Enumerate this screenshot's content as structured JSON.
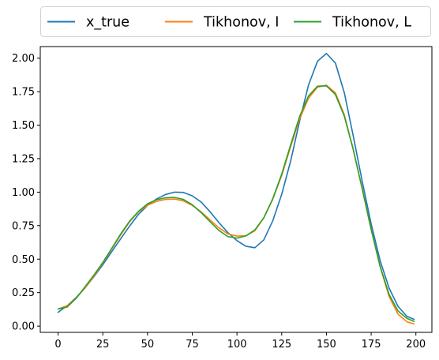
{
  "chart_data": {
    "type": "line",
    "title": "",
    "xlabel": "",
    "ylabel": "",
    "xlim": [
      -9.95,
      208.95
    ],
    "ylim": [
      -0.0465,
      2.0865
    ],
    "xticks": [
      0,
      25,
      50,
      75,
      100,
      125,
      150,
      175,
      200
    ],
    "xtick_labels": [
      "0",
      "25",
      "50",
      "75",
      "100",
      "125",
      "150",
      "175",
      "200"
    ],
    "yticks": [
      0.0,
      0.25,
      0.5,
      0.75,
      1.0,
      1.25,
      1.5,
      1.75,
      2.0
    ],
    "ytick_labels": [
      "0.00",
      "0.25",
      "0.50",
      "0.75",
      "1.00",
      "1.25",
      "1.50",
      "1.75",
      "2.00"
    ],
    "grid": false,
    "legend": {
      "placement": "top (outside, above axes)",
      "columns": 3
    },
    "series": [
      {
        "name": "x_true",
        "color": "#1f77b4",
        "x": [
          0,
          5,
          10,
          15,
          20,
          25,
          30,
          35,
          40,
          45,
          50,
          55,
          60,
          65,
          70,
          75,
          80,
          85,
          90,
          95,
          100,
          105,
          110,
          115,
          120,
          125,
          130,
          135,
          140,
          145,
          150,
          155,
          160,
          165,
          170,
          175,
          180,
          185,
          190,
          195,
          199
        ],
        "y": [
          0.103,
          0.152,
          0.212,
          0.284,
          0.368,
          0.458,
          0.556,
          0.652,
          0.747,
          0.835,
          0.901,
          0.949,
          0.982,
          1.0,
          0.998,
          0.973,
          0.926,
          0.853,
          0.771,
          0.697,
          0.638,
          0.596,
          0.585,
          0.644,
          0.786,
          0.984,
          1.232,
          1.53,
          1.8,
          1.977,
          2.035,
          1.964,
          1.742,
          1.419,
          1.081,
          0.763,
          0.49,
          0.285,
          0.148,
          0.073,
          0.051
        ]
      },
      {
        "name": "Tikhonov, I",
        "color": "#ff7f0e",
        "x": [
          0,
          5,
          10,
          15,
          20,
          25,
          30,
          35,
          40,
          45,
          50,
          55,
          60,
          65,
          70,
          75,
          80,
          85,
          90,
          95,
          100,
          105,
          110,
          115,
          120,
          125,
          130,
          135,
          140,
          145,
          150,
          155,
          160,
          165,
          170,
          175,
          180,
          185,
          190,
          195,
          199
        ],
        "y": [
          0.128,
          0.152,
          0.207,
          0.284,
          0.372,
          0.471,
          0.576,
          0.681,
          0.779,
          0.854,
          0.902,
          0.931,
          0.946,
          0.949,
          0.935,
          0.901,
          0.853,
          0.792,
          0.733,
          0.688,
          0.672,
          0.674,
          0.712,
          0.808,
          0.947,
          1.124,
          1.34,
          1.546,
          1.701,
          1.784,
          1.798,
          1.742,
          1.577,
          1.318,
          1.023,
          0.722,
          0.444,
          0.222,
          0.089,
          0.032,
          0.017
        ]
      },
      {
        "name": "Tikhonov, L",
        "color": "#2ca02c",
        "x": [
          0,
          5,
          10,
          15,
          20,
          25,
          30,
          35,
          40,
          45,
          50,
          55,
          60,
          65,
          70,
          75,
          80,
          85,
          90,
          95,
          100,
          105,
          110,
          115,
          120,
          125,
          130,
          135,
          140,
          145,
          150,
          155,
          160,
          165,
          170,
          175,
          180,
          185,
          190,
          195,
          199
        ],
        "y": [
          0.128,
          0.142,
          0.206,
          0.292,
          0.381,
          0.475,
          0.581,
          0.688,
          0.784,
          0.857,
          0.913,
          0.943,
          0.958,
          0.961,
          0.946,
          0.906,
          0.847,
          0.779,
          0.713,
          0.668,
          0.657,
          0.674,
          0.718,
          0.809,
          0.951,
          1.135,
          1.353,
          1.565,
          1.718,
          1.791,
          1.793,
          1.729,
          1.567,
          1.317,
          1.028,
          0.722,
          0.448,
          0.238,
          0.113,
          0.058,
          0.035
        ]
      }
    ]
  }
}
